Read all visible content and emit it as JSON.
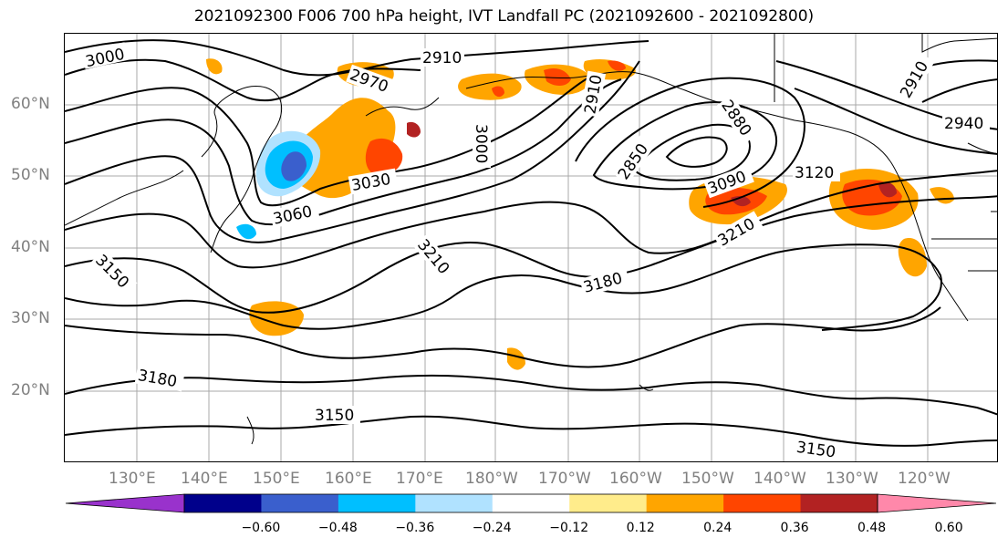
{
  "title": "2021092300 F006 700 hPa height, IVT Landfall PC (2021092600 - 2021092800)",
  "lat_labels": [
    "60°N",
    "50°N",
    "40°N",
    "30°N",
    "20°N"
  ],
  "lon_labels": [
    "130°E",
    "140°E",
    "150°E",
    "160°E",
    "170°E",
    "180°W",
    "170°W",
    "160°W",
    "150°W",
    "140°W",
    "130°W",
    "120°W"
  ],
  "contour_labels": [
    "3000",
    "2910",
    "2970",
    "2910",
    "2880",
    "2850",
    "3000",
    "3030",
    "3060",
    "3090",
    "3120",
    "2940",
    "2910",
    "3210",
    "3150",
    "3210",
    "3180",
    "3180",
    "3150",
    "3150"
  ],
  "colorbar": {
    "ticks": [
      "−0.60",
      "−0.48",
      "−0.36",
      "−0.24",
      "−0.12",
      "0.12",
      "0.24",
      "0.36",
      "0.48",
      "0.60"
    ],
    "colors": [
      "#9932cc",
      "#00008b",
      "#3a5fcd",
      "#00bfff",
      "#b0e2ff",
      "#ffffff",
      "#ffec8b",
      "#ffa500",
      "#ff4500",
      "#b22222",
      "#ff88aa"
    ]
  }
}
